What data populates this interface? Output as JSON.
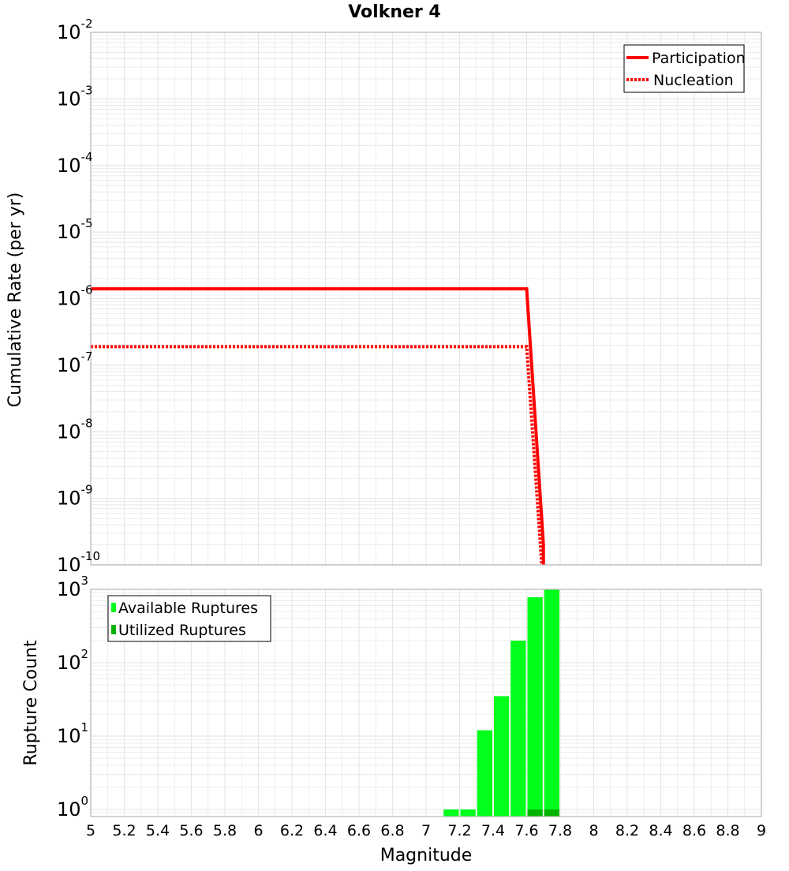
{
  "title": "Volkner 4",
  "xlabel": "Magnitude",
  "x_ticks": [
    "5",
    "5.2",
    "5.4",
    "5.6",
    "5.8",
    "6",
    "6.2",
    "6.4",
    "6.6",
    "6.8",
    "7",
    "7.2",
    "7.4",
    "7.6",
    "7.8",
    "8",
    "8.2",
    "8.4",
    "8.6",
    "8.8",
    "9"
  ],
  "colors": {
    "participation": "#ff0000",
    "nucleation": "#ff0000",
    "available": "#00ff1a",
    "utilized": "#00b400",
    "grid": "#e6e6e6",
    "frame": "#b4b4b4"
  },
  "chart_data": [
    {
      "type": "line",
      "ylabel": "Cumulative Rate (per yr)",
      "xlim": [
        5,
        9
      ],
      "ylim": [
        1e-10,
        0.01
      ],
      "yscale": "log",
      "grid": true,
      "legend_position": "top-right",
      "y_ticks": [
        {
          "base": "10",
          "exp": "-2"
        },
        {
          "base": "10",
          "exp": "-3"
        },
        {
          "base": "10",
          "exp": "-4"
        },
        {
          "base": "10",
          "exp": "-5"
        },
        {
          "base": "10",
          "exp": "-6"
        },
        {
          "base": "10",
          "exp": "-7"
        },
        {
          "base": "10",
          "exp": "-8"
        },
        {
          "base": "10",
          "exp": "-9"
        },
        {
          "base": "10",
          "exp": "-10"
        }
      ],
      "series": [
        {
          "name": "Participation",
          "style": "solid",
          "x": [
            5.0,
            7.6,
            7.7,
            7.7
          ],
          "y": [
            1.4e-06,
            1.4e-06,
            2e-10,
            1e-10
          ]
        },
        {
          "name": "Nucleation",
          "style": "dotted",
          "x": [
            5.0,
            7.6,
            7.69
          ],
          "y": [
            1.9e-07,
            1.9e-07,
            1e-10
          ]
        }
      ]
    },
    {
      "type": "bar",
      "ylabel": "Rupture Count",
      "xlim": [
        5,
        9
      ],
      "ylim": [
        0.8,
        1000
      ],
      "yscale": "log",
      "grid": true,
      "legend_position": "top-left",
      "y_ticks": [
        {
          "base": "10",
          "exp": "3"
        },
        {
          "base": "10",
          "exp": "2"
        },
        {
          "base": "10",
          "exp": "1"
        },
        {
          "base": "10",
          "exp": "0"
        }
      ],
      "bin_width": 0.1,
      "series": [
        {
          "name": "Available Ruptures",
          "x": [
            7.15,
            7.25,
            7.35,
            7.45,
            7.55,
            7.65,
            7.75
          ],
          "values": [
            1,
            1,
            12,
            35,
            200,
            780,
            1000
          ]
        },
        {
          "name": "Utilized Ruptures",
          "x": [
            7.65,
            7.75
          ],
          "values": [
            1,
            1
          ]
        }
      ]
    }
  ]
}
